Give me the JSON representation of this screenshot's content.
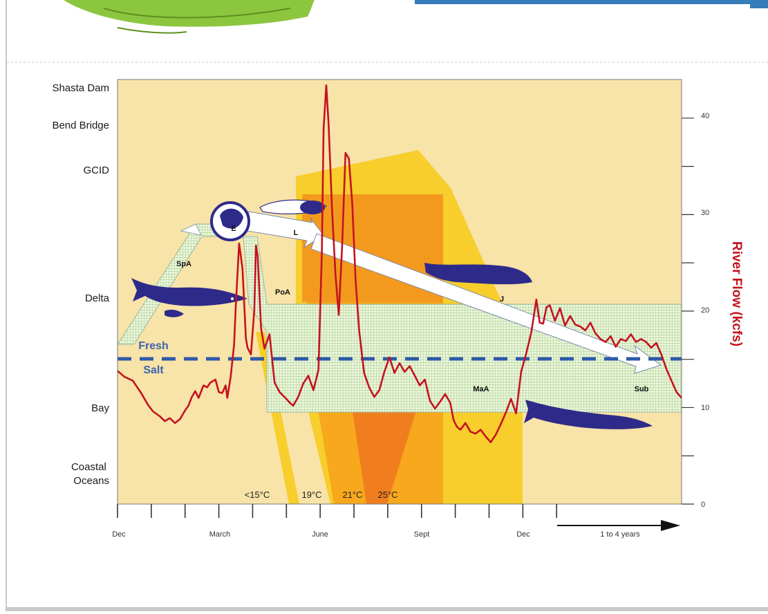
{
  "chart_data": {
    "type": "line",
    "ylabel": "River Flow (kcfs)",
    "y_right": {
      "ylim": [
        0,
        44
      ],
      "ticks": [
        0,
        10,
        20,
        30,
        40
      ]
    },
    "y_left_locations": [
      "Shasta Dam",
      "Bend Bridge",
      "GCID",
      "Delta",
      "Bay",
      "Coastal\nOceans"
    ],
    "x_tick_labels": [
      {
        "label": "Dec",
        "month": 0
      },
      {
        "label": "March",
        "month": 3
      },
      {
        "label": "June",
        "month": 6
      },
      {
        "label": "Sept",
        "month": 9
      },
      {
        "label": "Dec",
        "month": 12
      }
    ],
    "x_extra_label": "1 to 4 years",
    "xlim_months": [
      0,
      16.7
    ],
    "temperature_labels": [
      "<15°C",
      "19°C",
      "21°C",
      "25°C"
    ],
    "life_stages": [
      "SpA",
      "E",
      "L",
      "PoA",
      "J",
      "MaA",
      "Sub"
    ],
    "salinity_labels": [
      "Fresh",
      "Salt"
    ],
    "series": [
      {
        "name": "River Flow (kcfs)",
        "color": "#c4121f",
        "x": [
          0,
          0.2,
          0.45,
          0.7,
          0.9,
          1.05,
          1.25,
          1.4,
          1.55,
          1.7,
          1.85,
          2.0,
          2.1,
          2.2,
          2.3,
          2.4,
          2.5,
          2.55,
          2.65,
          2.75,
          2.9,
          3.0,
          3.1,
          3.2,
          3.25,
          3.35,
          3.45,
          3.5,
          3.6,
          3.7,
          3.8,
          3.85,
          3.95,
          4.05,
          4.1,
          4.15,
          4.25,
          4.35,
          4.5,
          4.65,
          4.8,
          5.0,
          5.1,
          5.2,
          5.35,
          5.5,
          5.65,
          5.8,
          5.95,
          6.05,
          6.1,
          6.18,
          6.25,
          6.35,
          6.45,
          6.55,
          6.65,
          6.75,
          6.85,
          6.95,
          7.05,
          7.15,
          7.3,
          7.45,
          7.6,
          7.75,
          7.9,
          8.05,
          8.2,
          8.35,
          8.5,
          8.65,
          8.8,
          8.95,
          9.1,
          9.25,
          9.4,
          9.55,
          9.7,
          9.85,
          9.95,
          10.05,
          10.15,
          10.3,
          10.45,
          10.6,
          10.75,
          10.9,
          11.05,
          11.2,
          11.35,
          11.5,
          11.65,
          11.8,
          11.95,
          12.1,
          12.25,
          12.4,
          12.5,
          12.6,
          12.7,
          12.8,
          12.95,
          13.1,
          13.25,
          13.4,
          13.55,
          13.7,
          13.85,
          14.0,
          14.15,
          14.3,
          14.45,
          14.6,
          14.75,
          14.9,
          15.05,
          15.2,
          15.35,
          15.5,
          15.65,
          15.8,
          15.95,
          16.1,
          16.25,
          16.4,
          16.55,
          16.7
        ],
        "values": [
          13.8,
          13.2,
          12.8,
          11.5,
          10.3,
          9.6,
          9.1,
          8.6,
          8.9,
          8.4,
          8.8,
          9.7,
          10.2,
          11.1,
          11.7,
          11.0,
          11.9,
          12.3,
          12.1,
          12.6,
          12.9,
          11.6,
          11.5,
          12.3,
          11.0,
          13.2,
          16.5,
          20.4,
          27.0,
          24.4,
          17.2,
          16.2,
          15.5,
          20.1,
          26.8,
          25.7,
          18.2,
          16.1,
          17.6,
          12.6,
          11.6,
          10.9,
          10.5,
          10.2,
          11.1,
          12.5,
          13.3,
          11.8,
          13.9,
          26.1,
          38.9,
          43.4,
          39.3,
          30.6,
          23.9,
          19.6,
          26.7,
          36.4,
          35.8,
          31.1,
          23.1,
          18.1,
          13.6,
          12.1,
          11.1,
          11.8,
          13.7,
          15.2,
          13.6,
          14.6,
          13.7,
          14.3,
          13.3,
          12.3,
          12.9,
          10.7,
          9.9,
          10.6,
          11.4,
          10.5,
          8.7,
          8.0,
          7.7,
          8.4,
          7.5,
          7.3,
          7.7,
          7.0,
          6.4,
          7.2,
          8.3,
          9.5,
          10.9,
          9.4,
          13.7,
          15.6,
          17.8,
          21.2,
          18.8,
          18.7,
          20.4,
          20.6,
          19.0,
          20.3,
          18.5,
          19.5,
          18.6,
          18.4,
          18.0,
          18.8,
          17.7,
          17.1,
          16.8,
          17.4,
          16.3,
          17.1,
          16.9,
          17.6,
          16.8,
          17.1,
          16.8,
          16.2,
          16.7,
          15.5,
          14.0,
          12.8,
          11.6,
          11.0
        ]
      }
    ],
    "grid": false
  }
}
